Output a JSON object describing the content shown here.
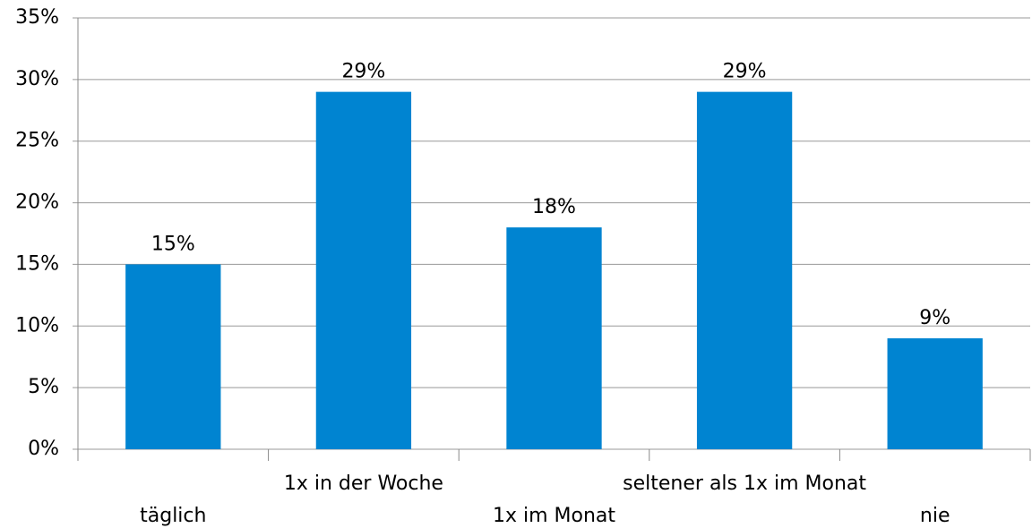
{
  "chart_data": {
    "type": "bar",
    "categories": [
      "täglich",
      "1x in der Woche",
      "1x im Monat",
      "seltener als 1x im Monat",
      "nie"
    ],
    "values": [
      15,
      29,
      18,
      29,
      9
    ],
    "value_labels": [
      "15%",
      "29%",
      "18%",
      "29%",
      "9%"
    ],
    "color": "#0084d1",
    "ylim": [
      0,
      35
    ],
    "yticks": [
      {
        "value": 0,
        "label": "0%"
      },
      {
        "value": 5,
        "label": "5%"
      },
      {
        "value": 10,
        "label": "10%"
      },
      {
        "value": 15,
        "label": "15%"
      },
      {
        "value": 20,
        "label": "20%"
      },
      {
        "value": 25,
        "label": "25%"
      },
      {
        "value": 30,
        "label": "30%"
      },
      {
        "value": 35,
        "label": "35%"
      }
    ],
    "grid": true
  }
}
